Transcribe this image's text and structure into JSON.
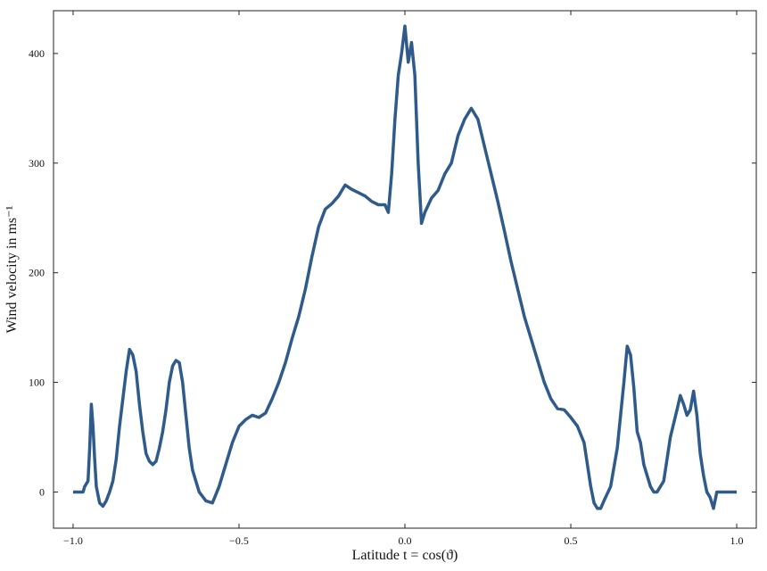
{
  "chart_data": {
    "type": "line",
    "x_label": "Latitude t = cos(ϑ)",
    "y_label": "Wind velocity in ms⁻¹",
    "xlim": [
      -1.059,
      1.059
    ],
    "ylim": [
      -33,
      439
    ],
    "xticks": [
      {
        "value": -1.0,
        "label": "−1.0"
      },
      {
        "value": -0.5,
        "label": "−0.5"
      },
      {
        "value": 0.0,
        "label": "0.0"
      },
      {
        "value": 0.5,
        "label": "0.5"
      },
      {
        "value": 1.0,
        "label": "1.0"
      }
    ],
    "yticks": [
      0,
      100,
      200,
      300,
      400
    ],
    "grid": false,
    "series": [
      {
        "color": "#2f5b8c",
        "x": [
          -1.0,
          -0.97,
          -0.965,
          -0.955,
          -0.95,
          -0.945,
          -0.94,
          -0.935,
          -0.93,
          -0.92,
          -0.91,
          -0.9,
          -0.89,
          -0.88,
          -0.87,
          -0.86,
          -0.85,
          -0.84,
          -0.83,
          -0.82,
          -0.81,
          -0.8,
          -0.79,
          -0.78,
          -0.77,
          -0.76,
          -0.75,
          -0.74,
          -0.73,
          -0.72,
          -0.71,
          -0.7,
          -0.69,
          -0.68,
          -0.67,
          -0.66,
          -0.65,
          -0.64,
          -0.62,
          -0.6,
          -0.58,
          -0.56,
          -0.54,
          -0.52,
          -0.5,
          -0.48,
          -0.46,
          -0.44,
          -0.42,
          -0.4,
          -0.38,
          -0.36,
          -0.34,
          -0.32,
          -0.3,
          -0.28,
          -0.26,
          -0.24,
          -0.22,
          -0.2,
          -0.18,
          -0.16,
          -0.14,
          -0.12,
          -0.1,
          -0.08,
          -0.06,
          -0.05,
          -0.04,
          -0.03,
          -0.02,
          -0.01,
          0.0,
          0.01,
          0.02,
          0.03,
          0.04,
          0.05,
          0.06,
          0.08,
          0.1,
          0.12,
          0.14,
          0.16,
          0.18,
          0.2,
          0.22,
          0.24,
          0.26,
          0.28,
          0.3,
          0.32,
          0.34,
          0.36,
          0.38,
          0.4,
          0.42,
          0.44,
          0.46,
          0.48,
          0.5,
          0.52,
          0.54,
          0.55,
          0.56,
          0.57,
          0.58,
          0.59,
          0.6,
          0.62,
          0.64,
          0.66,
          0.67,
          0.68,
          0.69,
          0.7,
          0.71,
          0.72,
          0.74,
          0.75,
          0.76,
          0.78,
          0.8,
          0.82,
          0.83,
          0.84,
          0.85,
          0.86,
          0.87,
          0.88,
          0.89,
          0.9,
          0.91,
          0.92,
          0.93,
          0.94,
          0.95,
          1.0
        ],
        "values": [
          0,
          0,
          5,
          10,
          40,
          80,
          60,
          30,
          5,
          -10,
          -13,
          -8,
          0,
          10,
          30,
          60,
          85,
          110,
          130,
          125,
          110,
          80,
          55,
          35,
          28,
          25,
          28,
          40,
          55,
          75,
          100,
          115,
          120,
          118,
          100,
          70,
          40,
          20,
          0,
          -8,
          -10,
          5,
          25,
          45,
          60,
          66,
          70,
          68,
          72,
          85,
          100,
          118,
          140,
          160,
          185,
          215,
          242,
          258,
          263,
          270,
          280,
          276,
          273,
          270,
          265,
          262,
          262,
          255,
          290,
          340,
          380,
          400,
          425,
          392,
          410,
          380,
          300,
          245,
          255,
          268,
          275,
          290,
          300,
          325,
          340,
          350,
          340,
          315,
          290,
          265,
          238,
          210,
          185,
          160,
          140,
          120,
          100,
          85,
          76,
          75,
          68,
          60,
          45,
          25,
          5,
          -10,
          -15,
          -15,
          -8,
          5,
          40,
          100,
          133,
          125,
          95,
          55,
          45,
          25,
          5,
          0,
          0,
          10,
          50,
          75,
          88,
          80,
          70,
          75,
          92,
          70,
          35,
          15,
          0,
          -5,
          -15,
          0,
          0,
          0
        ]
      }
    ]
  }
}
